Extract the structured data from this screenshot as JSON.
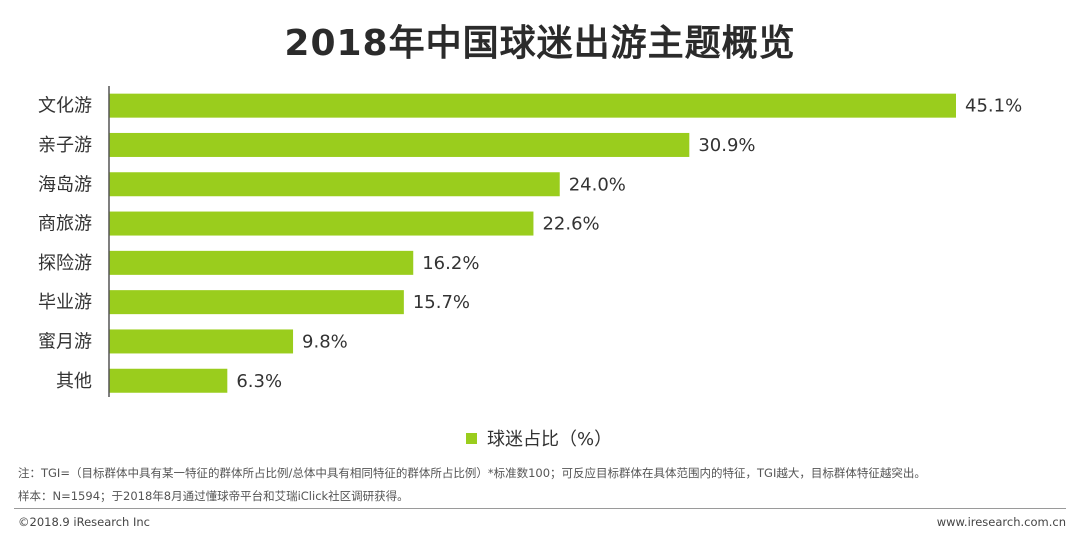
{
  "colors": {
    "bar": "#9acd1d",
    "axis": "#555555",
    "text": "#333333"
  },
  "chart_data": {
    "type": "bar",
    "orientation": "horizontal",
    "title": "2018年中国球迷出游主题概览",
    "categories": [
      "文化游",
      "亲子游",
      "海岛游",
      "商旅游",
      "探险游",
      "毕业游",
      "蜜月游",
      "其他"
    ],
    "values": [
      45.1,
      30.9,
      24.0,
      22.6,
      16.2,
      15.7,
      9.8,
      6.3
    ],
    "value_labels": [
      "45.1%",
      "30.9%",
      "24.0%",
      "22.6%",
      "16.2%",
      "15.7%",
      "9.8%",
      "6.3%"
    ],
    "series_name": "球迷占比（%）",
    "xlim": [
      0,
      45.1
    ],
    "xlabel": "",
    "ylabel": "",
    "grid": false,
    "legend_position": "bottom-center"
  },
  "legend": {
    "label": "球迷占比（%）"
  },
  "notes": {
    "line1": "注：TGI=（目标群体中具有某一特征的群体所占比例/总体中具有相同特征的群体所占比例）*标准数100；可反应目标群体在具体范围内的特征，TGI越大，目标群体特征越突出。",
    "line2": "样本：N=1594；于2018年8月通过懂球帝平台和艾瑞iClick社区调研获得。"
  },
  "footer": {
    "left": "©2018.9 iResearch Inc",
    "right": "www.iresearch.com.cn"
  }
}
